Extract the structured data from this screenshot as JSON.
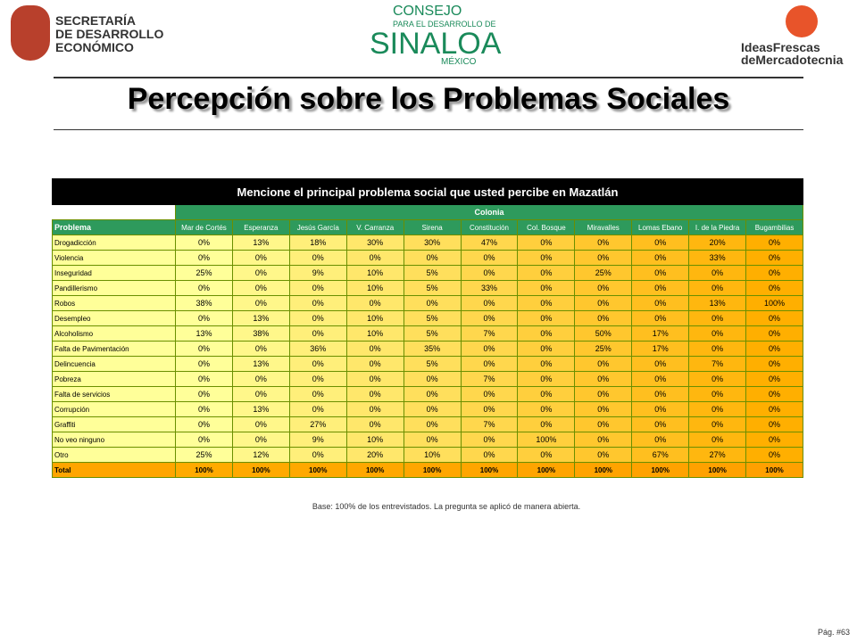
{
  "header": {
    "left_logo": [
      "SECRETARÍA",
      "DE DESARROLLO",
      "ECONÓMICO"
    ],
    "center_logo": {
      "line1": "CONSEJO",
      "line2": "PARA EL DESARROLLO DE",
      "line3": "SINALOA",
      "line4": "MÉXICO"
    },
    "right_logo": {
      "line1": "IdeasFrescas",
      "line2": "deMercadotecnia"
    }
  },
  "title": "Percepción sobre los Problemas Sociales",
  "table": {
    "caption": "Mencione el principal problema social que usted percibe en Mazatlán",
    "group": "Colonia",
    "row_header": "Problema",
    "columns": [
      "Mar de Cortés",
      "Esperanza",
      "Jesús García",
      "V. Carranza",
      "Sirena",
      "Constitución",
      "Col. Bosque",
      "Miravalles",
      "Lomas Ebano",
      "I. de la Piedra",
      "Bugambilias"
    ],
    "rows": [
      {
        "label": "Drogadicción",
        "values": [
          "0%",
          "13%",
          "18%",
          "30%",
          "30%",
          "47%",
          "0%",
          "0%",
          "0%",
          "20%",
          "0%"
        ]
      },
      {
        "label": "Violencia",
        "values": [
          "0%",
          "0%",
          "0%",
          "0%",
          "0%",
          "0%",
          "0%",
          "0%",
          "0%",
          "33%",
          "0%"
        ]
      },
      {
        "label": "Inseguridad",
        "values": [
          "25%",
          "0%",
          "9%",
          "10%",
          "5%",
          "0%",
          "0%",
          "25%",
          "0%",
          "0%",
          "0%"
        ]
      },
      {
        "label": "Pandillerismo",
        "values": [
          "0%",
          "0%",
          "0%",
          "10%",
          "5%",
          "33%",
          "0%",
          "0%",
          "0%",
          "0%",
          "0%"
        ]
      },
      {
        "label": "Robos",
        "values": [
          "38%",
          "0%",
          "0%",
          "0%",
          "0%",
          "0%",
          "0%",
          "0%",
          "0%",
          "13%",
          "100%"
        ]
      },
      {
        "label": "Desempleo",
        "values": [
          "0%",
          "13%",
          "0%",
          "10%",
          "5%",
          "0%",
          "0%",
          "0%",
          "0%",
          "0%",
          "0%"
        ]
      },
      {
        "label": "Alcoholismo",
        "values": [
          "13%",
          "38%",
          "0%",
          "10%",
          "5%",
          "7%",
          "0%",
          "50%",
          "17%",
          "0%",
          "0%"
        ]
      },
      {
        "label": "Falta de Pavimentación",
        "values": [
          "0%",
          "0%",
          "36%",
          "0%",
          "35%",
          "0%",
          "0%",
          "25%",
          "17%",
          "0%",
          "0%"
        ]
      },
      {
        "label": "Delincuencia",
        "values": [
          "0%",
          "13%",
          "0%",
          "0%",
          "5%",
          "0%",
          "0%",
          "0%",
          "0%",
          "7%",
          "0%"
        ]
      },
      {
        "label": "Pobreza",
        "values": [
          "0%",
          "0%",
          "0%",
          "0%",
          "0%",
          "7%",
          "0%",
          "0%",
          "0%",
          "0%",
          "0%"
        ]
      },
      {
        "label": "Falta de servicios",
        "values": [
          "0%",
          "0%",
          "0%",
          "0%",
          "0%",
          "0%",
          "0%",
          "0%",
          "0%",
          "0%",
          "0%"
        ]
      },
      {
        "label": "Corrupción",
        "values": [
          "0%",
          "13%",
          "0%",
          "0%",
          "0%",
          "0%",
          "0%",
          "0%",
          "0%",
          "0%",
          "0%"
        ]
      },
      {
        "label": "Graffiti",
        "values": [
          "0%",
          "0%",
          "27%",
          "0%",
          "0%",
          "7%",
          "0%",
          "0%",
          "0%",
          "0%",
          "0%"
        ]
      },
      {
        "label": "No veo ninguno",
        "values": [
          "0%",
          "0%",
          "9%",
          "10%",
          "0%",
          "0%",
          "100%",
          "0%",
          "0%",
          "0%",
          "0%"
        ]
      },
      {
        "label": "Otro",
        "values": [
          "25%",
          "12%",
          "0%",
          "20%",
          "10%",
          "0%",
          "0%",
          "0%",
          "67%",
          "27%",
          "0%"
        ]
      },
      {
        "label": "Total",
        "values": [
          "100%",
          "100%",
          "100%",
          "100%",
          "100%",
          "100%",
          "100%",
          "100%",
          "100%",
          "100%",
          "100%"
        ]
      }
    ]
  },
  "footnote": "Base: 100% de los entrevistados. La pregunta se aplicó de manera abierta.",
  "page": "Pág. #63"
}
